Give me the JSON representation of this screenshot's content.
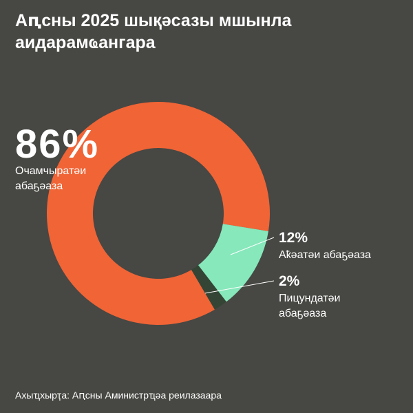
{
  "chart_data": {
    "type": "donut",
    "title": "Аԥсны 2025 шықәсазы мшынла аидарамҩангара",
    "categories": [
      "Очамчыратәи абаҕәаза",
      "Аҟәатәи абаҕәаза",
      "Пицундатәи абаҕәаза"
    ],
    "values": [
      86,
      12,
      2
    ],
    "value_labels": [
      "86%",
      "12%",
      "2%"
    ],
    "colors": [
      "#f06436",
      "#86e8bb",
      "#354535"
    ],
    "source": "Ахыҵхырҭа: Аԥсны Аминистрҵәа реилазаара"
  }
}
